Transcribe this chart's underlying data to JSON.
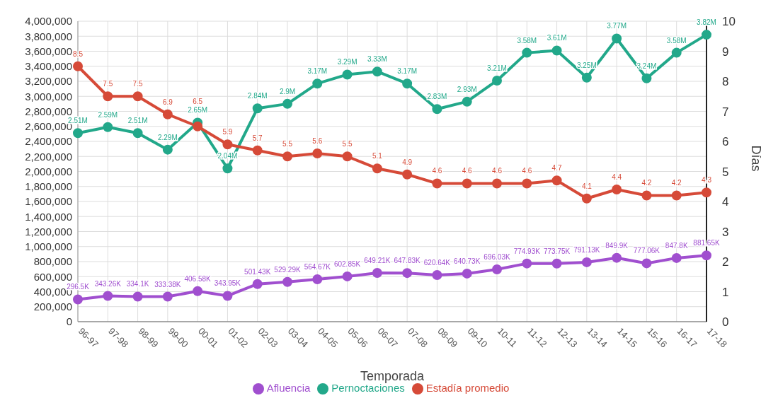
{
  "chart_data": {
    "type": "line",
    "xlabel": "Temporada",
    "y2label": "Días",
    "categories": [
      "96-97",
      "97-98",
      "98-99",
      "99-00",
      "00-01",
      "01-02",
      "02-03",
      "03-04",
      "04-05",
      "05-06",
      "06-07",
      "07-08",
      "08-09",
      "09-10",
      "10-11",
      "11-12",
      "12-13",
      "13-14",
      "14-15",
      "15-16",
      "16-17",
      "17-18"
    ],
    "series": [
      {
        "name": "Afluencia",
        "color": "#a04fcf",
        "values": [
          296500,
          343260,
          334100,
          333380,
          406580,
          343950,
          501430,
          529290,
          564670,
          602850,
          649210,
          647830,
          620640,
          640730,
          696030,
          774930,
          773750,
          791130,
          849900,
          777060,
          847800,
          881650
        ],
        "value_labels": [
          "296.5K",
          "343.26K",
          "334.1K",
          "333.38K",
          "406.58K",
          "343.95K",
          "501.43K",
          "529.29K",
          "564.67K",
          "602.85K",
          "649.21K",
          "647.83K",
          "620.64K",
          "640.73K",
          "696.03K",
          "774.93K",
          "773.75K",
          "791.13K",
          "849.9K",
          "777.06K",
          "847.8K",
          "881.65K"
        ]
      },
      {
        "name": "Pernoctaciones",
        "color": "#22a88a",
        "values": [
          2510000,
          2590000,
          2510000,
          2290000,
          2650000,
          2040000,
          2840000,
          2900000,
          3170000,
          3290000,
          3330000,
          3170000,
          2830000,
          2930000,
          3210000,
          3580000,
          3610000,
          3250000,
          3770000,
          3240000,
          3580000,
          3820000
        ],
        "value_labels": [
          "2.51M",
          "2.59M",
          "2.51M",
          "2.29M",
          "2.65M",
          "2.04M",
          "2.84M",
          "2.9M",
          "3.17M",
          "3.29M",
          "3.33M",
          "3.17M",
          "2.83M",
          "2.93M",
          "3.21M",
          "3.58M",
          "3.61M",
          "3.25M",
          "3.77M",
          "3.24M",
          "3.58M",
          "3.82M"
        ]
      },
      {
        "name": "Estadía promedio",
        "color": "#d64a38",
        "axis": "y2",
        "values": [
          8.5,
          7.5,
          7.5,
          6.9,
          6.5,
          5.9,
          5.7,
          5.5,
          5.6,
          5.5,
          5.1,
          4.9,
          4.6,
          4.6,
          4.6,
          4.6,
          4.7,
          4.1,
          4.4,
          4.2,
          4.2,
          4.3
        ],
        "data_labels": true
      }
    ],
    "ylim": [
      0,
      4000000
    ],
    "yticks": [
      0,
      {
        "value": 200000,
        "label": "200,000"
      },
      {
        "value": 400000,
        "label": "400,000"
      },
      {
        "value": 600000,
        "label": "600,000"
      },
      {
        "value": 800000,
        "label": "800,000"
      },
      {
        "value": 1000000,
        "label": "1,000,000"
      },
      {
        "value": 1200000,
        "label": "1,200,000"
      },
      {
        "value": 1400000,
        "label": "1,400,000"
      },
      {
        "value": 1600000,
        "label": "1,600,000"
      },
      {
        "value": 1800000,
        "label": "1,800,000"
      },
      {
        "value": 2000000,
        "label": "2,000,000"
      },
      {
        "value": 2200000,
        "label": "2,200,000"
      },
      {
        "value": 2400000,
        "label": "2,400,000"
      },
      {
        "value": 2600000,
        "label": "2,600,000"
      },
      {
        "value": 2800000,
        "label": "2,800,000"
      },
      {
        "value": 3000000,
        "label": "3,000,000"
      },
      {
        "value": 3200000,
        "label": "3,200,000"
      },
      {
        "value": 3400000,
        "label": "3,400,000"
      },
      {
        "value": 3600000,
        "label": "3,600,000"
      },
      {
        "value": 3800000,
        "label": "3,800,000"
      },
      {
        "value": 4000000,
        "label": "4,000,000"
      }
    ],
    "y2lim": [
      0,
      10
    ],
    "y2ticks": [
      0,
      1,
      2,
      3,
      4,
      5,
      6,
      7,
      8,
      9,
      10
    ],
    "grid": true,
    "legend": "bottom",
    "marker": "circle",
    "line_style": "solid"
  }
}
